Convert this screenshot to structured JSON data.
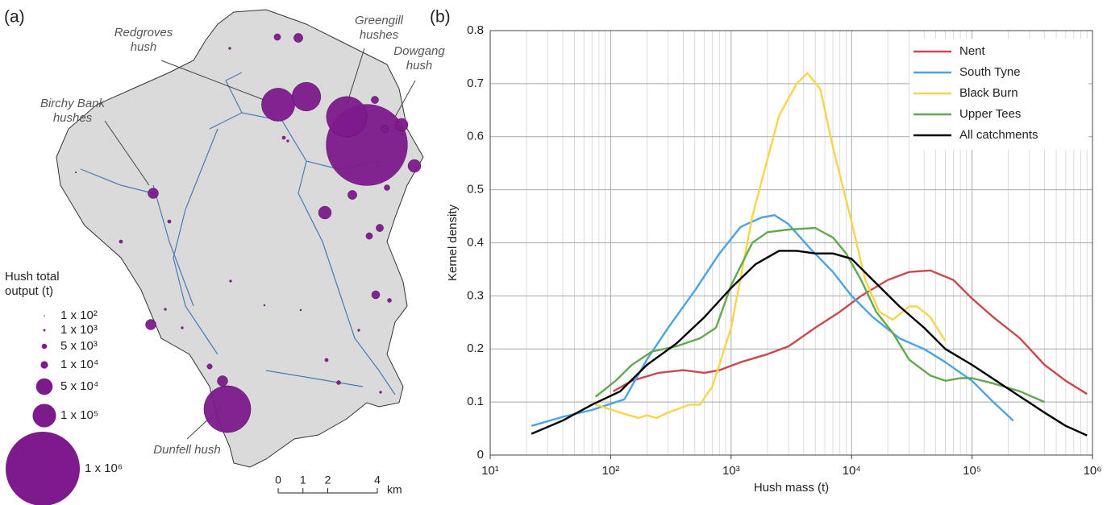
{
  "panel_labels": [
    "(a)",
    "(b)"
  ],
  "map": {
    "callouts": [
      "Redgroves hush",
      "Greengill hushes",
      "Dowgang hush",
      "Birchy Bank hushes",
      "Dunfell hush"
    ],
    "hushes": [
      1200000,
      300000,
      200000,
      150000,
      400000,
      30000,
      30000,
      30000,
      20000,
      20000,
      20000,
      12000,
      10000,
      15000,
      10000,
      8000,
      15000,
      8000,
      5000,
      10000,
      6000,
      2000,
      2000,
      3000,
      3000,
      2000,
      1000,
      500,
      1000,
      1000,
      1000,
      500,
      1000,
      1000,
      200,
      2000,
      1000
    ],
    "bubble_color": "#7d1a8c",
    "legend": {
      "title": "Hush total output (t)",
      "entries": [
        {
          "value": 100,
          "label": "1 x 10²"
        },
        {
          "value": 1000,
          "label": "1 x 10³"
        },
        {
          "value": 5000,
          "label": "5 x 10³"
        },
        {
          "value": 10000,
          "label": "1 x 10⁴"
        },
        {
          "value": 50000,
          "label": "5 x 10⁴"
        },
        {
          "value": 100000,
          "label": "1 x 10⁵"
        },
        {
          "value": 1000000,
          "label": "1 x 10⁶"
        }
      ]
    },
    "scale_bar": {
      "ticks": [
        0,
        1,
        2,
        4
      ],
      "unit": "km"
    }
  },
  "chart_data": {
    "type": "line",
    "x_label": "Hush mass (t)",
    "y_label": "Kernel density",
    "log_x": true,
    "grid": true,
    "legend": "upper right",
    "xlim": [
      10,
      1000000
    ],
    "xticks": [
      {
        "value": 10,
        "label": "10¹"
      },
      {
        "value": 100,
        "label": "10²"
      },
      {
        "value": 1000,
        "label": "10³"
      },
      {
        "value": 10000,
        "label": "10⁴"
      },
      {
        "value": 100000,
        "label": "10⁵"
      },
      {
        "value": 1000000,
        "label": "10⁶"
      }
    ],
    "ylim": [
      0,
      0.8
    ],
    "yticks": [
      0,
      0.1,
      0.2,
      0.3,
      0.4,
      0.5,
      0.6,
      0.7,
      0.8
    ],
    "series": [
      {
        "name": "Nent",
        "color": "#c8494f",
        "x": [
          105,
          150,
          250,
          400,
          600,
          800,
          1200,
          2000,
          3000,
          5000,
          8000,
          12000,
          20000,
          30000,
          45000,
          70000,
          100000,
          150000,
          250000,
          400000,
          600000,
          900000
        ],
        "values": [
          0.12,
          0.14,
          0.155,
          0.16,
          0.155,
          0.16,
          0.175,
          0.19,
          0.205,
          0.24,
          0.27,
          0.3,
          0.33,
          0.345,
          0.348,
          0.33,
          0.295,
          0.26,
          0.22,
          0.17,
          0.14,
          0.115
        ]
      },
      {
        "name": "South Tyne",
        "color": "#4ba3e3",
        "x": [
          22,
          40,
          70,
          130,
          200,
          300,
          500,
          800,
          1200,
          1800,
          2300,
          3000,
          4500,
          7000,
          10000,
          15000,
          25000,
          40000,
          60000,
          100000,
          150000,
          220000
        ],
        "values": [
          0.055,
          0.072,
          0.085,
          0.105,
          0.18,
          0.24,
          0.31,
          0.38,
          0.43,
          0.448,
          0.452,
          0.435,
          0.39,
          0.345,
          0.3,
          0.26,
          0.22,
          0.2,
          0.175,
          0.14,
          0.1,
          0.065
        ]
      },
      {
        "name": "Black Burn",
        "color": "#f7d54a",
        "x": [
          75,
          120,
          170,
          200,
          240,
          300,
          450,
          550,
          700,
          1000,
          1500,
          2500,
          3500,
          4300,
          5500,
          7000,
          10000,
          13000,
          17000,
          22000,
          30000,
          35000,
          45000,
          60000
        ],
        "values": [
          0.095,
          0.08,
          0.07,
          0.075,
          0.07,
          0.08,
          0.095,
          0.095,
          0.13,
          0.24,
          0.45,
          0.64,
          0.7,
          0.72,
          0.69,
          0.58,
          0.44,
          0.33,
          0.27,
          0.255,
          0.28,
          0.28,
          0.26,
          0.215
        ]
      },
      {
        "name": "Upper Tees",
        "color": "#62a84e",
        "x": [
          75,
          110,
          150,
          220,
          350,
          550,
          750,
          1000,
          1500,
          2000,
          3000,
          5000,
          7000,
          9000,
          12000,
          16000,
          22000,
          30000,
          45000,
          60000,
          80000,
          100000,
          150000,
          250000,
          400000
        ],
        "values": [
          0.11,
          0.14,
          0.17,
          0.195,
          0.205,
          0.22,
          0.24,
          0.32,
          0.4,
          0.42,
          0.425,
          0.428,
          0.41,
          0.38,
          0.33,
          0.27,
          0.23,
          0.18,
          0.15,
          0.14,
          0.145,
          0.145,
          0.135,
          0.12,
          0.1
        ]
      },
      {
        "name": "All catchments",
        "color": "#000000",
        "x": [
          22,
          40,
          70,
          120,
          200,
          350,
          600,
          1000,
          1600,
          2500,
          3500,
          5000,
          7000,
          10000,
          15000,
          25000,
          40000,
          60000,
          100000,
          200000,
          400000,
          600000,
          900000
        ],
        "values": [
          0.04,
          0.065,
          0.095,
          0.12,
          0.17,
          0.21,
          0.26,
          0.315,
          0.36,
          0.385,
          0.385,
          0.38,
          0.38,
          0.37,
          0.33,
          0.28,
          0.24,
          0.2,
          0.17,
          0.125,
          0.08,
          0.055,
          0.037
        ]
      }
    ]
  }
}
